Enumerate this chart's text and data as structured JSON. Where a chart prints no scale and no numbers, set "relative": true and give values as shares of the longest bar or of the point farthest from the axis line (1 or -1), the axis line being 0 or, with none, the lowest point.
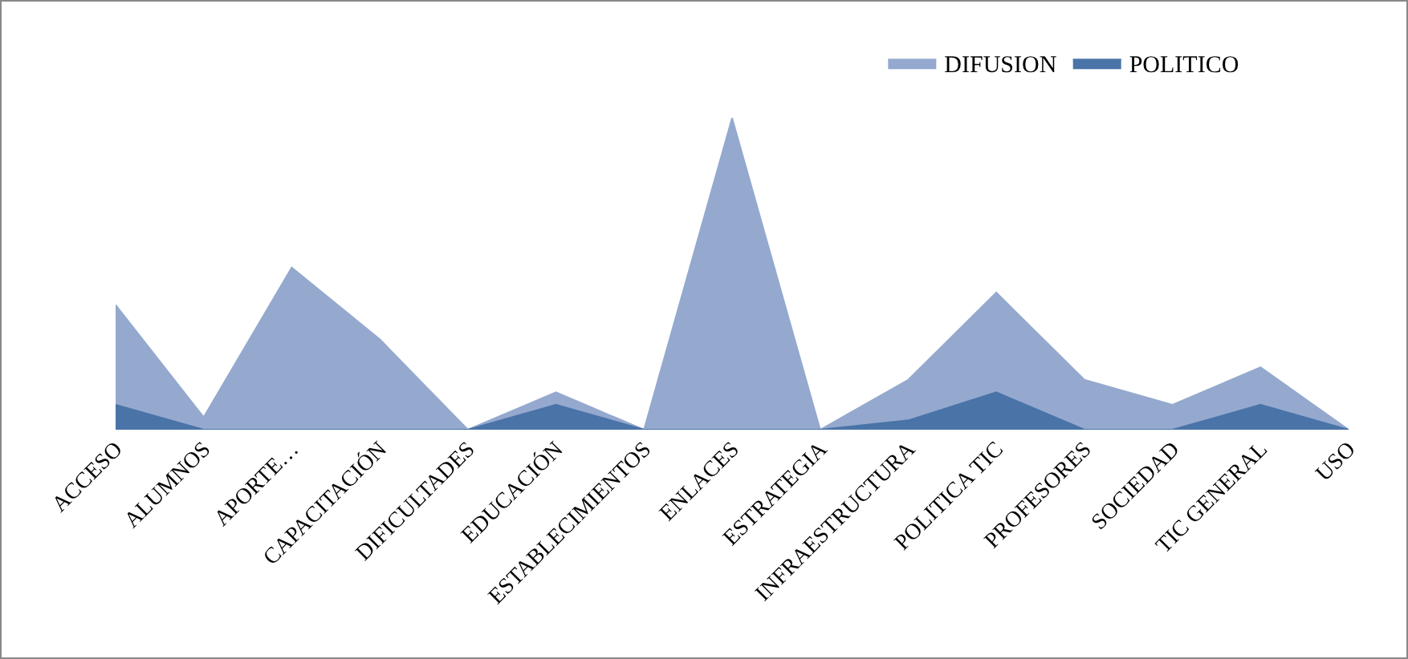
{
  "chart_data": {
    "type": "area",
    "relative": true,
    "categories": [
      "ACCESO",
      "ALUMNOS",
      "APORTE…",
      "CAPACITACIÓN",
      "DIFICULTADES",
      "EDUCACIÓN",
      "ESTABLECIMIENTOS",
      "ENLACES",
      "ESTRATEGIA",
      "INFRAESTRUCTURA",
      "POLITICA TIC",
      "PROFESORES",
      "SOCIEDAD",
      "TIC GENERAL",
      "USO"
    ],
    "series": [
      {
        "name": "DIFUSION",
        "color": "#95a9cf",
        "values": [
          0.4,
          0.04,
          0.52,
          0.29,
          0,
          0.12,
          0,
          1,
          0,
          0.16,
          0.44,
          0.16,
          0.08,
          0.2,
          0
        ]
      },
      {
        "name": "POLITICO",
        "color": "#4a74a8",
        "values": [
          0.08,
          0,
          0,
          0,
          0,
          0.08,
          0,
          0,
          0,
          0.03,
          0.12,
          0,
          0,
          0.08,
          0
        ]
      }
    ],
    "legend": "top right",
    "grid": false
  }
}
